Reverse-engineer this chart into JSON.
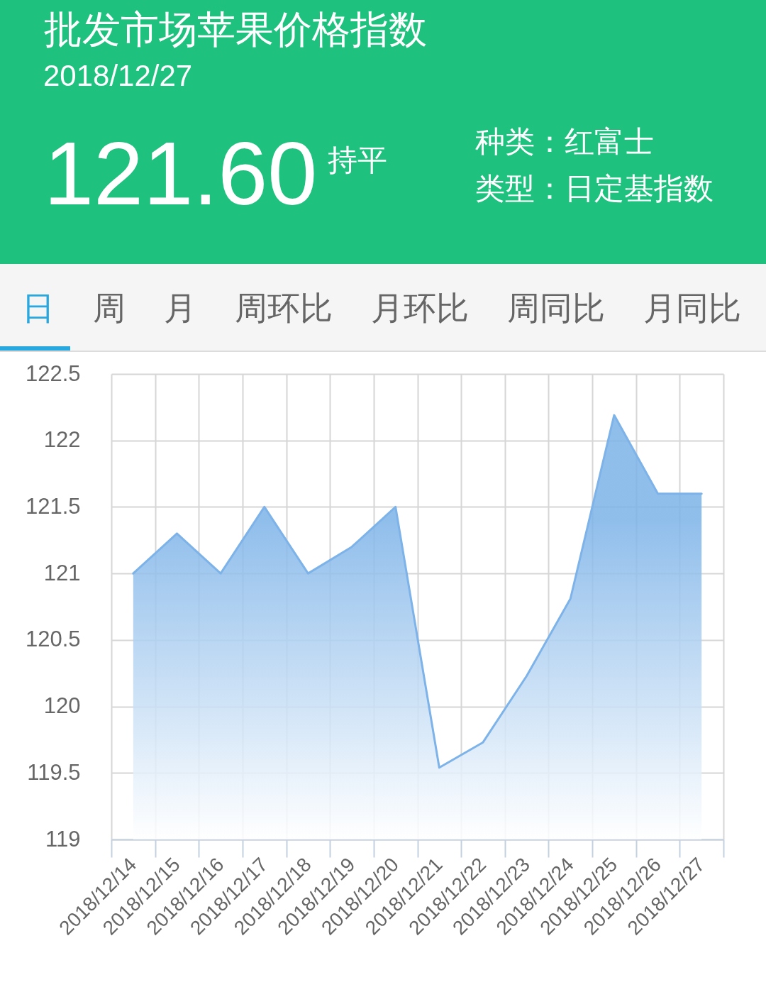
{
  "chart_data": {
    "type": "area",
    "title": "批发市场苹果价格指数",
    "subtitle": "2018/12/27",
    "annotations": [
      "121.60",
      "持平",
      "种类：红富士",
      "类型：日定基指数",
      "日",
      "周",
      "月",
      "周环比",
      "月环比",
      "周同比",
      "月同比"
    ],
    "categories": [
      "2018/12/14",
      "2018/12/15",
      "2018/12/16",
      "2018/12/17",
      "2018/12/18",
      "2018/12/19",
      "2018/12/20",
      "2018/12/21",
      "2018/12/22",
      "2018/12/23",
      "2018/12/24",
      "2018/12/25",
      "2018/12/26",
      "2018/12/27"
    ],
    "series": [
      {
        "color": "#7db3e8",
        "values": [
          121.0,
          121.3,
          121.0,
          121.5,
          121.0,
          121.2,
          121.5,
          119.54,
          119.73,
          120.23,
          120.81,
          122.19,
          121.6,
          121.6
        ]
      }
    ],
    "ylim": [
      119,
      122.5
    ],
    "yticks": [
      119,
      119.5,
      120,
      120.5,
      121,
      121.5,
      122,
      122.5
    ],
    "grid": true
  }
}
